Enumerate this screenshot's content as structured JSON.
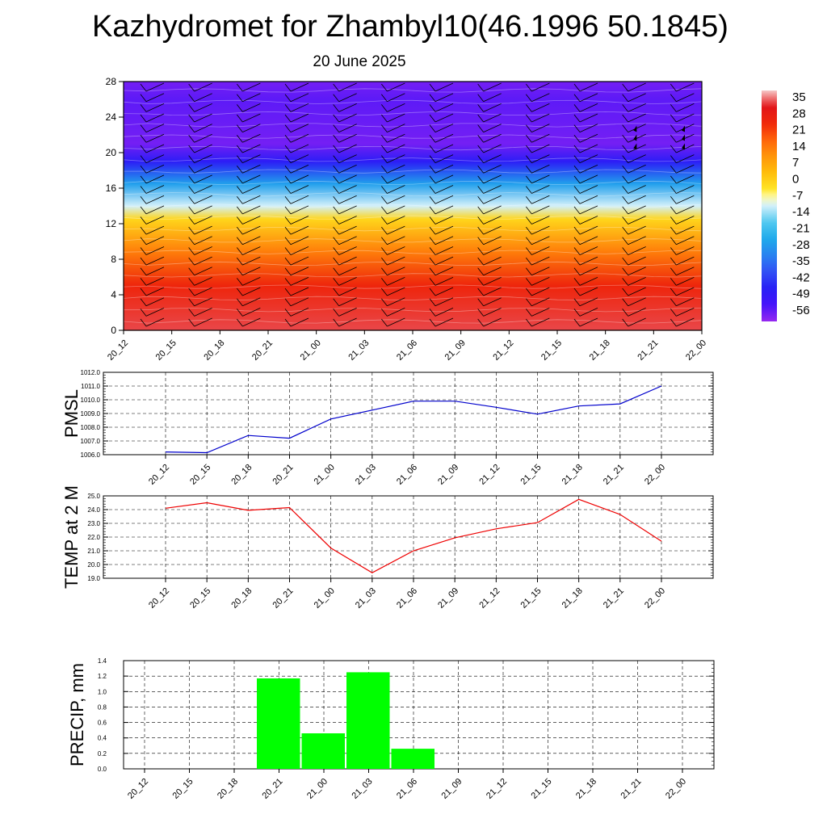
{
  "title": "Kazhydromet for Zhambyl10(46.1996 50.1845)",
  "subtitle": "20 June 2025",
  "colors": {
    "pmsl_line": "#0000cc",
    "temp_line": "#ee0000",
    "precip_bar": "#00ff00",
    "grid": "#000000"
  },
  "chart_data": [
    {
      "type": "heatmap",
      "title": "",
      "x_categories": [
        "20_12",
        "20_15",
        "20_18",
        "20_21",
        "21_00",
        "21_03",
        "21_06",
        "21_09",
        "21_12",
        "21_15",
        "21_18",
        "21_21",
        "22_00"
      ],
      "y_ticks": [
        0,
        4,
        8,
        12,
        16,
        20,
        24,
        28
      ],
      "ylim": [
        0,
        28
      ],
      "colorbar": {
        "labels": [
          "35",
          "28",
          "21",
          "14",
          "7",
          "0",
          "-7",
          "-14",
          "-21",
          "-28",
          "-35",
          "-42",
          "-49",
          "-56"
        ],
        "range": [
          -63,
          35
        ]
      },
      "temperature_profile": [
        {
          "level": 0,
          "value": 30
        },
        {
          "level": 5,
          "value": 22
        },
        {
          "level": 9,
          "value": 10
        },
        {
          "level": 12.5,
          "value": -4
        },
        {
          "level": 14,
          "value": -14
        },
        {
          "level": 16.5,
          "value": -30
        },
        {
          "level": 19,
          "value": -50
        },
        {
          "level": 21,
          "value": -60
        },
        {
          "level": 26,
          "value": -58
        },
        {
          "level": 28,
          "value": -60
        }
      ],
      "wind_barbs": "present"
    },
    {
      "type": "line",
      "ylabel": "PMSL",
      "x": [
        "20_12",
        "20_15",
        "20_18",
        "20_21",
        "21_00",
        "21_03",
        "21_06",
        "21_09",
        "21_12",
        "21_15",
        "21_18",
        "21_21",
        "22_00"
      ],
      "ylim": [
        1006.0,
        1012.0
      ],
      "yticks": [
        "1006.0",
        "1007.0",
        "1008.0",
        "1009.0",
        "1010.0",
        "1011.0",
        "1012.0"
      ],
      "series": [
        {
          "values": [
            1006.2,
            1006.15,
            1007.4,
            1007.2,
            1008.6,
            1009.25,
            1009.9,
            1009.9,
            1009.45,
            1008.95,
            1009.55,
            1009.7,
            1011.0
          ]
        }
      ]
    },
    {
      "type": "line",
      "ylabel": "TEMP at 2 M",
      "x": [
        "20_12",
        "20_15",
        "20_18",
        "20_21",
        "21_00",
        "21_03",
        "21_06",
        "21_09",
        "21_12",
        "21_15",
        "21_18",
        "21_21",
        "22_00"
      ],
      "ylim": [
        19.0,
        25.0
      ],
      "yticks": [
        "19.0",
        "20.0",
        "21.0",
        "22.0",
        "23.0",
        "24.0",
        "25.0"
      ],
      "series": [
        {
          "values": [
            24.1,
            24.5,
            23.95,
            24.15,
            21.2,
            19.4,
            21.0,
            21.95,
            22.6,
            23.05,
            24.75,
            23.65,
            21.7
          ]
        }
      ]
    },
    {
      "type": "bar",
      "ylabel": "PRECIP, mm",
      "categories": [
        "20_12",
        "20_15",
        "20_18",
        "20_21",
        "21_00",
        "21_03",
        "21_06",
        "21_09",
        "21_12",
        "21_15",
        "21_18",
        "21_21",
        "22_00"
      ],
      "ylim": [
        0.0,
        1.4
      ],
      "yticks": [
        "0.0",
        "0.2",
        "0.4",
        "0.6",
        "0.8",
        "1.0",
        "1.2",
        "1.4"
      ],
      "values": [
        0,
        0,
        0,
        1.17,
        0.46,
        1.25,
        0.26,
        0,
        0,
        0,
        0,
        0,
        0
      ]
    }
  ]
}
